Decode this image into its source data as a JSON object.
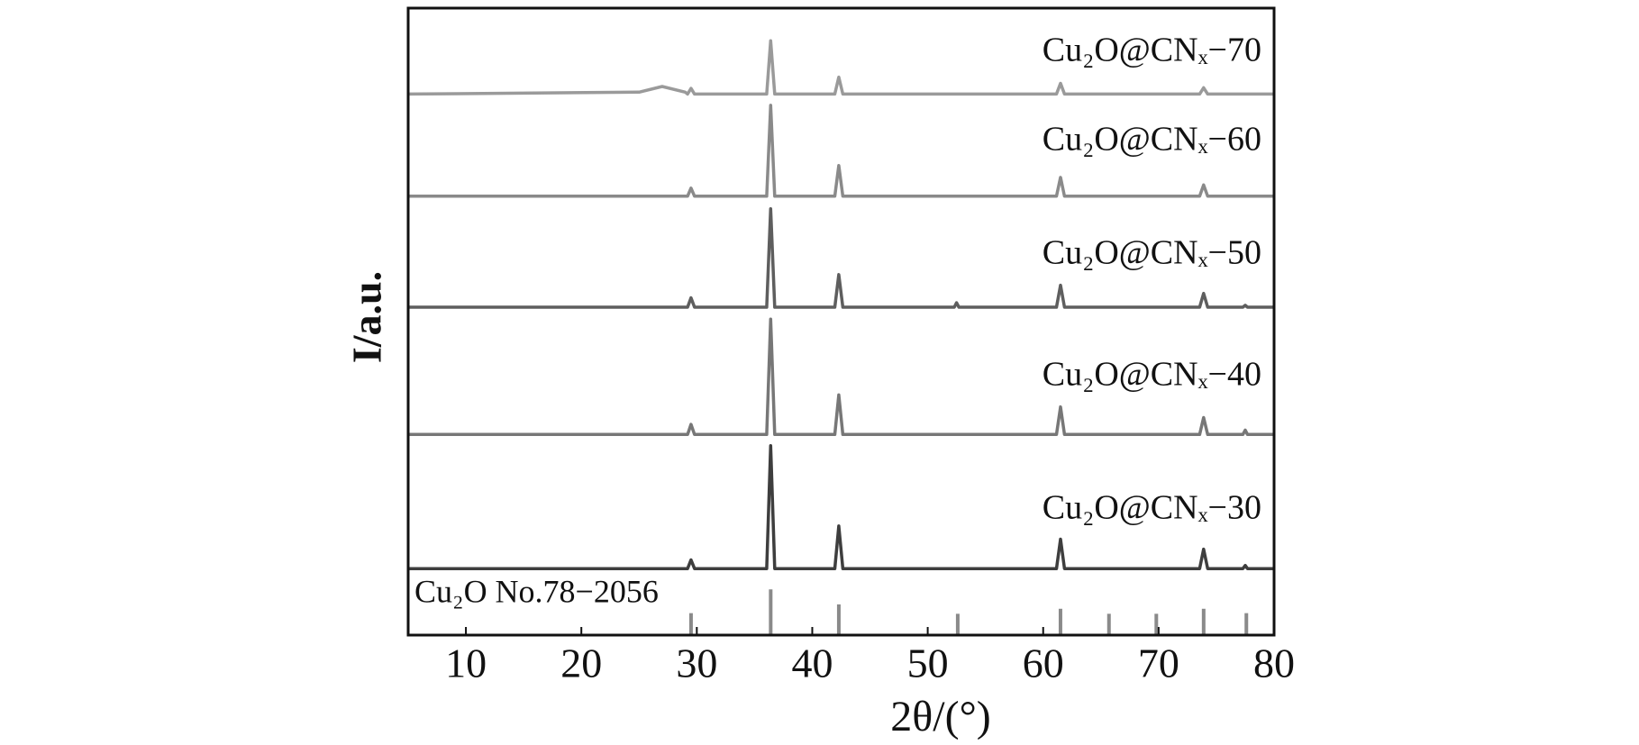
{
  "chart_data": {
    "type": "line",
    "xlabel": "2θ/(°)",
    "ylabel": "I/a.u.",
    "xlim": [
      5,
      80
    ],
    "xticks": [
      10,
      20,
      30,
      40,
      50,
      60,
      70,
      80
    ],
    "ylim": [
      0,
      100
    ],
    "series": [
      {
        "name": "Cu₂O@CNₓ−70",
        "color": "#9a9a9a",
        "x": [
          5,
          25,
          27,
          29,
          29.2,
          29.5,
          29.8,
          36.05,
          36.4,
          36.75,
          41.95,
          42.3,
          42.65,
          61.15,
          61.5,
          61.85,
          73.55,
          73.9,
          74.25,
          80
        ],
        "values": [
          86.3,
          86.6,
          87.5,
          86.6,
          86.3,
          87.2,
          86.3,
          86.3,
          94.8,
          86.3,
          86.3,
          89.0,
          86.3,
          86.3,
          88.0,
          86.3,
          86.3,
          87.3,
          86.3,
          86.3
        ]
      },
      {
        "name": "Cu₂O@CNₓ−60",
        "color": "#8a8a8a",
        "x": [
          5,
          29.2,
          29.5,
          29.8,
          36.05,
          36.4,
          36.75,
          41.95,
          42.3,
          42.65,
          61.15,
          61.5,
          61.85,
          73.55,
          73.9,
          74.25,
          80
        ],
        "values": [
          70.0,
          70.0,
          71.3,
          70.0,
          70.0,
          84.5,
          70.0,
          70.0,
          74.9,
          70.0,
          70.0,
          73.0,
          70.0,
          70.0,
          71.8,
          70.0,
          70.0
        ]
      },
      {
        "name": "Cu₂O@CNₓ−50",
        "color": "#5e5e5e",
        "x": [
          5,
          29.2,
          29.5,
          29.8,
          36.05,
          36.4,
          36.75,
          41.95,
          42.3,
          42.65,
          52.3,
          52.5,
          52.7,
          61.15,
          61.5,
          61.85,
          73.55,
          73.9,
          74.25,
          77.3,
          77.5,
          77.7,
          80
        ],
        "values": [
          52.3,
          52.3,
          53.8,
          52.3,
          52.3,
          68.0,
          52.3,
          52.3,
          57.5,
          52.3,
          52.3,
          53.0,
          52.3,
          52.3,
          55.8,
          52.3,
          52.3,
          54.5,
          52.3,
          52.3,
          52.6,
          52.3,
          52.3
        ]
      },
      {
        "name": "Cu₂O@CNₓ−40",
        "color": "#777777",
        "x": [
          5,
          29.2,
          29.5,
          29.8,
          36.05,
          36.4,
          36.75,
          41.95,
          42.3,
          42.65,
          61.15,
          61.5,
          61.85,
          73.55,
          73.9,
          74.25,
          77.3,
          77.5,
          77.7,
          80
        ],
        "values": [
          32.0,
          32.0,
          33.6,
          32.0,
          32.0,
          50.4,
          32.0,
          32.0,
          38.3,
          32.0,
          32.0,
          36.4,
          32.0,
          32.0,
          34.7,
          32.0,
          32.0,
          32.7,
          32.0,
          32.0
        ]
      },
      {
        "name": "Cu₂O@CNₓ−30",
        "color": "#3e3e3e",
        "x": [
          5,
          29.2,
          29.5,
          29.8,
          36.05,
          36.4,
          36.75,
          41.95,
          42.3,
          42.65,
          61.15,
          61.5,
          61.85,
          73.55,
          73.9,
          74.25,
          77.3,
          77.5,
          77.7,
          80
        ],
        "values": [
          10.6,
          10.6,
          12.0,
          10.6,
          10.6,
          30.2,
          10.6,
          10.6,
          17.4,
          10.6,
          10.6,
          15.3,
          10.6,
          10.6,
          13.7,
          10.6,
          10.6,
          11.1,
          10.6,
          10.6
        ]
      }
    ],
    "reference": {
      "name": "Cu₂O No.78−2056",
      "color": "#8a8a8a",
      "x": [
        29.5,
        36.4,
        42.3,
        52.6,
        61.5,
        65.7,
        69.8,
        73.9,
        77.6
      ],
      "values": [
        3.5,
        7.3,
        4.9,
        3.4,
        4.2,
        3.4,
        3.4,
        4.2,
        3.5
      ]
    }
  }
}
